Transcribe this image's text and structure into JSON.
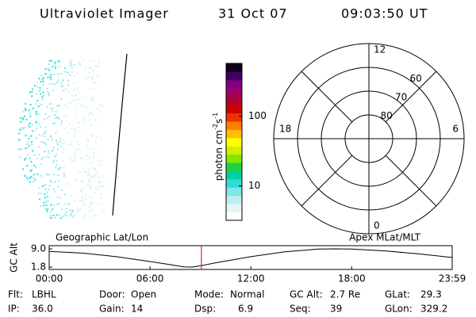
{
  "header": {
    "title": "Ultraviolet Imager",
    "date": "31 Oct 07",
    "time": "09:03:50 UT"
  },
  "colorbar": {
    "label": "photon cm",
    "exp1": "-2",
    "unit2": "s",
    "exp2": "-1",
    "log_scale": true,
    "clim": [
      3.2,
      575
    ],
    "ticks": [
      10,
      100
    ],
    "colors": [
      "#ffffff",
      "#e4f6f6",
      "#c0eeee",
      "#80e6e6",
      "#30dcd8",
      "#00d0a0",
      "#20d040",
      "#80e800",
      "#d0f000",
      "#ffff00",
      "#ffc000",
      "#ff8000",
      "#f03000",
      "#d00000",
      "#b00030",
      "#a00060",
      "#800080",
      "#400060",
      "#100020"
    ]
  },
  "polar": {
    "rlim": [
      90,
      50
    ],
    "ring_labels": [
      80,
      70,
      60
    ],
    "mlt_labels": [
      12,
      18,
      6,
      0
    ]
  },
  "altitude_plot": {
    "type": "line",
    "y_label": "GC Alt",
    "left_label": "Geographic Lat/Lon",
    "right_label": "Apex MLat/MLT",
    "ylim": [
      1.8,
      9.0
    ],
    "yticks": [
      {
        "value": 9.0,
        "label": "9.0"
      },
      {
        "value": 1.8,
        "label": "1.8"
      }
    ],
    "xlim": [
      0,
      23.98
    ],
    "xticks": [
      {
        "value": 0,
        "label": "00:00"
      },
      {
        "value": 6,
        "label": "06:00"
      },
      {
        "value": 12,
        "label": "12:00"
      },
      {
        "value": 18,
        "label": "18:00"
      },
      {
        "value": 23.98,
        "label": "23:59"
      }
    ],
    "x": [
      0,
      2,
      4,
      6,
      7,
      8,
      8.5,
      9,
      10,
      12,
      14,
      16,
      17,
      18,
      20,
      22,
      23.98
    ],
    "values": [
      8.0,
      7.3,
      5.9,
      4.0,
      3.0,
      1.9,
      1.8,
      2.3,
      3.6,
      5.9,
      7.8,
      8.9,
      9.0,
      8.9,
      8.2,
      7.0,
      5.6
    ],
    "color": "#000000",
    "marker_x": 9.06,
    "marker_color": "#d00000"
  },
  "fields": [
    [
      {
        "label": "Flt:",
        "value": "LBHL"
      },
      {
        "label": "Door:",
        "value": "Open"
      },
      {
        "label": "Mode:",
        "value": "Normal"
      },
      {
        "label": "GC Alt:",
        "value": "2.7 Re"
      },
      {
        "label": "GLat:",
        "value": "29.3"
      }
    ],
    [
      {
        "label": "IP:",
        "value": "36.0"
      },
      {
        "label": "Gain:",
        "value": "14"
      },
      {
        "label": "Dsp:",
        "value": "6.9"
      },
      {
        "label": "Seq:",
        "value": "39"
      },
      {
        "label": "GLon:",
        "value": "329.2"
      }
    ]
  ]
}
